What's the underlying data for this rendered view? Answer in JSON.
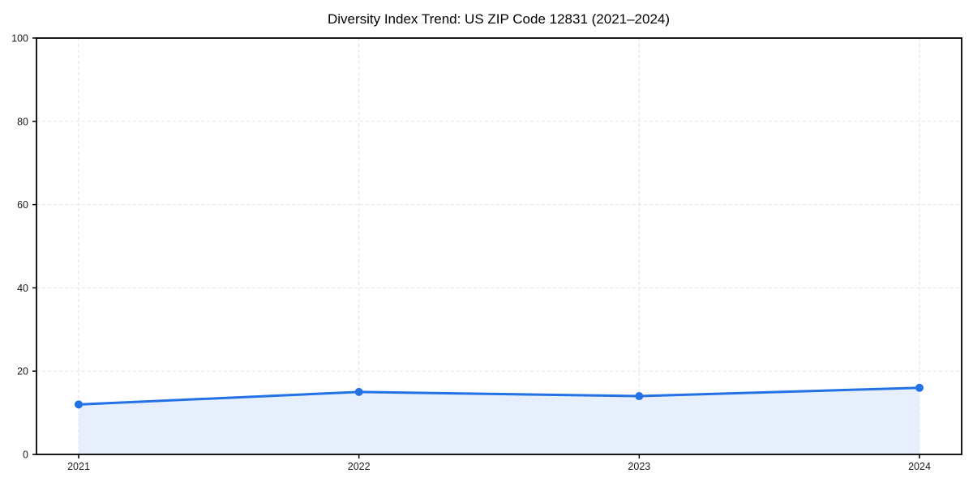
{
  "chart_data": {
    "type": "area",
    "title": "Diversity Index Trend: US ZIP Code 12831 (2021–2024)",
    "x_categories": [
      "2021",
      "2022",
      "2023",
      "2024"
    ],
    "series": [
      {
        "name": "Diversity Index",
        "values": [
          12,
          15,
          14,
          16
        ]
      }
    ],
    "xlabel": "",
    "ylabel": "",
    "ylim": [
      0,
      100
    ],
    "yticks": [
      0,
      20,
      40,
      60,
      80,
      100
    ],
    "grid": "dashed-both-axes",
    "legend": "none",
    "colors": {
      "line": "#2272e5",
      "marker": "#2272e5",
      "area_fill": "#e7effc",
      "grid": "#e2e2e2",
      "axis": "#000000",
      "title_text": "#000000",
      "tick_text": "#1a1a1a",
      "background": "#ffffff"
    }
  }
}
